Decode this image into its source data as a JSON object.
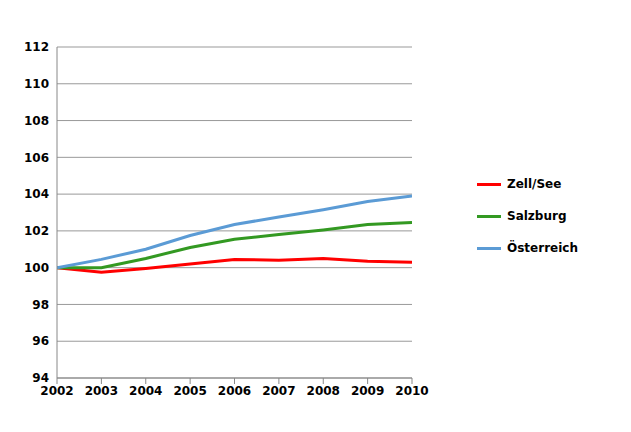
{
  "chart_data": {
    "type": "line",
    "x": [
      2002,
      2003,
      2004,
      2005,
      2006,
      2007,
      2008,
      2009,
      2010
    ],
    "series": [
      {
        "name": "Zell/See",
        "color": "#ff0000",
        "values": [
          100,
          99.75,
          99.95,
          100.2,
          100.45,
          100.4,
          100.5,
          100.35,
          100.3
        ]
      },
      {
        "name": "Salzburg",
        "color": "#339922",
        "values": [
          100,
          100,
          100.5,
          101.1,
          101.55,
          101.8,
          102.05,
          102.35,
          102.45
        ]
      },
      {
        "name": "Österreich",
        "color": "#5b9bd5",
        "values": [
          100,
          100.45,
          101,
          101.75,
          102.35,
          102.75,
          103.15,
          103.6,
          103.9
        ]
      }
    ],
    "xlim": [
      2002,
      2010
    ],
    "xticks": [
      2002,
      2003,
      2004,
      2005,
      2006,
      2007,
      2008,
      2009,
      2010
    ],
    "ylim": [
      94,
      112
    ],
    "yticks": [
      94,
      96,
      98,
      100,
      102,
      104,
      106,
      108,
      110,
      112
    ],
    "grid": true,
    "legend": "right"
  }
}
